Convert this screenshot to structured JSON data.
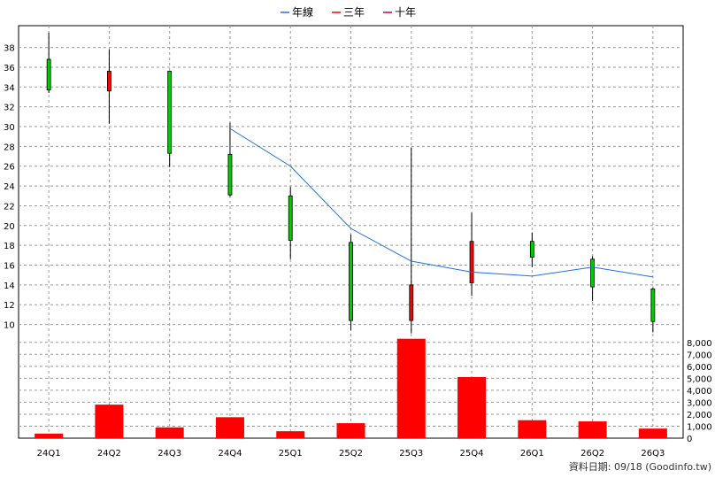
{
  "chart_data": {
    "type": "candlestick",
    "legend": {
      "placement": "top-center",
      "items": [
        {
          "label": "年線",
          "color": "#1f6fe0"
        },
        {
          "label": "三年",
          "color": "#ff0000"
        },
        {
          "label": "十年",
          "color": "#cc0044"
        }
      ]
    },
    "categories": [
      "24Q1",
      "24Q2",
      "24Q3",
      "24Q4",
      "25Q1",
      "25Q2",
      "25Q3",
      "25Q4",
      "26Q1",
      "26Q2",
      "26Q3"
    ],
    "ohlc": [
      {
        "open": 33.7,
        "high": 39.5,
        "low": 33.4,
        "close": 36.8,
        "color": "#00cc00"
      },
      {
        "open": 35.6,
        "high": 37.8,
        "low": 30.3,
        "close": 33.6,
        "color": "#ff0000"
      },
      {
        "open": 27.3,
        "high": 35.6,
        "low": 25.9,
        "close": 35.6,
        "color": "#00cc00"
      },
      {
        "open": 23.1,
        "high": 30.4,
        "low": 22.9,
        "close": 27.2,
        "color": "#00cc00"
      },
      {
        "open": 18.5,
        "high": 23.9,
        "low": 16.6,
        "close": 23.0,
        "color": "#00cc00"
      },
      {
        "open": 10.4,
        "high": 19.1,
        "low": 9.4,
        "close": 18.3,
        "color": "#00cc00"
      },
      {
        "open": 14.0,
        "high": 27.9,
        "low": 9.1,
        "close": 10.4,
        "color": "#ff0000"
      },
      {
        "open": 18.4,
        "high": 21.3,
        "low": 12.9,
        "close": 14.2,
        "color": "#ff0000"
      },
      {
        "open": 16.8,
        "high": 19.3,
        "low": 15.8,
        "close": 18.4,
        "color": "#00cc00"
      },
      {
        "open": 13.8,
        "high": 16.9,
        "low": 12.4,
        "close": 16.6,
        "color": "#00cc00"
      },
      {
        "open": 10.3,
        "high": 13.7,
        "low": 9.2,
        "close": 13.6,
        "color": "#00cc00"
      }
    ],
    "series": [
      {
        "name": "年線",
        "color": "#1f6fe0",
        "x": [
          "24Q4",
          "25Q1",
          "25Q2",
          "25Q3",
          "25Q4",
          "26Q1",
          "26Q2",
          "26Q3"
        ],
        "values": [
          29.8,
          26.0,
          19.7,
          16.4,
          15.3,
          14.9,
          15.8,
          14.8
        ]
      }
    ],
    "price_axis": {
      "ylim": [
        8.8,
        40.2
      ],
      "ticks": [
        10,
        12,
        14,
        16,
        18,
        20,
        22,
        24,
        26,
        28,
        30,
        32,
        34,
        36,
        38
      ]
    },
    "volume": {
      "values": [
        380,
        2800,
        900,
        1750,
        580,
        1250,
        8300,
        5100,
        1500,
        1400,
        800
      ],
      "color": "#ff0000"
    },
    "volume_axis": {
      "ylim": [
        0,
        8500
      ],
      "ticks": [
        "0",
        "1,000",
        "2,000",
        "3,000",
        "4,000",
        "5,000",
        "6,000",
        "7,000",
        "8,000"
      ]
    },
    "grid": true,
    "source_text": "資料日期: 09/18 (Goodinfo.tw)"
  }
}
